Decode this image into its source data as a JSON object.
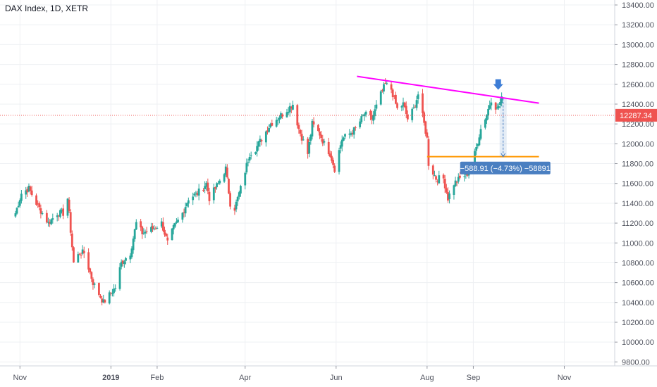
{
  "header": {
    "title": "DAX Index, 1D, XETR"
  },
  "chart_data": {
    "type": "candlestick",
    "title": "DAX Index, 1D, XETR",
    "symbol": "DAX Index",
    "interval": "1D",
    "exchange": "XETR",
    "x_ticks": [
      {
        "label": "Nov",
        "date": "2018-11-01",
        "bold": false
      },
      {
        "label": "2019",
        "date": "2019-01-01",
        "bold": true
      },
      {
        "label": "Feb",
        "date": "2019-02-01",
        "bold": false
      },
      {
        "label": "Apr",
        "date": "2019-04-01",
        "bold": false
      },
      {
        "label": "Jun",
        "date": "2019-06-01",
        "bold": false
      },
      {
        "label": "Aug",
        "date": "2019-08-01",
        "bold": false
      },
      {
        "label": "Sep",
        "date": "2019-09-01",
        "bold": false
      },
      {
        "label": "Nov",
        "date": "2019-11-01",
        "bold": false
      }
    ],
    "y_ticks": [
      "13400.00",
      "13200.00",
      "13000.00",
      "12800.00",
      "12600.00",
      "12400.00",
      "12200.00",
      "12000.00",
      "11800.00",
      "11600.00",
      "11400.00",
      "11200.00",
      "11000.00",
      "10800.00",
      "10600.00",
      "10400.00",
      "10200.00",
      "10000.00",
      "9800.00"
    ],
    "ylim": [
      9760,
      13450
    ],
    "grid": true,
    "colors": {
      "up": "#26a69a",
      "down": "#ef5350",
      "grid": "#eef0f3",
      "resistance": "#ff00ff",
      "support": "#ff9800",
      "measure": "#4a7fc1",
      "price": "#ef5350"
    },
    "last_price": {
      "value": 12287.34,
      "label": "12287.34"
    },
    "resistance_line": {
      "from": {
        "date": "2019-06-15",
        "price": 12680
      },
      "to": {
        "date": "2019-10-15",
        "price": 12410
      }
    },
    "support_line": {
      "from": {
        "date": "2019-08-01",
        "price": 11870
      },
      "to": {
        "date": "2019-10-15",
        "price": 11870
      }
    },
    "measure": {
      "date": "2019-09-21",
      "from": 12458,
      "to": 11869,
      "label": "−588.91 (−4.73%) −58891"
    },
    "path": [
      [
        "2018-10-29",
        11300
      ],
      [
        "2018-11-02",
        11500
      ],
      [
        "2018-11-07",
        11550
      ],
      [
        "2018-11-12",
        11400
      ],
      [
        "2018-11-16",
        11300
      ],
      [
        "2018-11-20",
        11200
      ],
      [
        "2018-11-26",
        11300
      ],
      [
        "2018-11-30",
        11300
      ],
      [
        "2018-12-03",
        11450
      ],
      [
        "2018-12-07",
        10800
      ],
      [
        "2018-12-11",
        10900
      ],
      [
        "2018-12-14",
        10900
      ],
      [
        "2018-12-20",
        10600
      ],
      [
        "2018-12-27",
        10400
      ],
      [
        "2019-01-04",
        10550
      ],
      [
        "2019-01-08",
        10800
      ],
      [
        "2019-01-14",
        10900
      ],
      [
        "2019-01-18",
        11200
      ],
      [
        "2019-01-22",
        11100
      ],
      [
        "2019-01-30",
        11150
      ],
      [
        "2019-02-04",
        11200
      ],
      [
        "2019-02-08",
        11000
      ],
      [
        "2019-02-12",
        11150
      ],
      [
        "2019-02-18",
        11300
      ],
      [
        "2019-02-22",
        11450
      ],
      [
        "2019-02-28",
        11500
      ],
      [
        "2019-03-06",
        11600
      ],
      [
        "2019-03-08",
        11450
      ],
      [
        "2019-03-14",
        11600
      ],
      [
        "2019-03-19",
        11750
      ],
      [
        "2019-03-22",
        11400
      ],
      [
        "2019-03-25",
        11350
      ],
      [
        "2019-03-29",
        11550
      ],
      [
        "2019-04-04",
        11900
      ],
      [
        "2019-04-08",
        11950
      ],
      [
        "2019-04-12",
        12050
      ],
      [
        "2019-04-18",
        12200
      ],
      [
        "2019-04-26",
        12300
      ],
      [
        "2019-05-03",
        12400
      ],
      [
        "2019-05-07",
        12150
      ],
      [
        "2019-05-13",
        11900
      ],
      [
        "2019-05-16",
        12200
      ],
      [
        "2019-05-21",
        12100
      ],
      [
        "2019-05-24",
        12000
      ],
      [
        "2019-05-28",
        11900
      ],
      [
        "2019-05-31",
        11750
      ],
      [
        "2019-06-05",
        12050
      ],
      [
        "2019-06-10",
        12100
      ],
      [
        "2019-06-14",
        12150
      ],
      [
        "2019-06-20",
        12300
      ],
      [
        "2019-06-25",
        12250
      ],
      [
        "2019-07-01",
        12500
      ],
      [
        "2019-07-04",
        12600
      ],
      [
        "2019-07-08",
        12550
      ],
      [
        "2019-07-12",
        12350
      ],
      [
        "2019-07-16",
        12400
      ],
      [
        "2019-07-19",
        12250
      ],
      [
        "2019-07-23",
        12350
      ],
      [
        "2019-07-26",
        12500
      ],
      [
        "2019-07-30",
        12200
      ],
      [
        "2019-08-01",
        12050
      ],
      [
        "2019-08-02",
        11800
      ],
      [
        "2019-08-07",
        11650
      ],
      [
        "2019-08-12",
        11650
      ],
      [
        "2019-08-15",
        11450
      ],
      [
        "2019-08-19",
        11600
      ],
      [
        "2019-08-23",
        11650
      ],
      [
        "2019-08-28",
        11700
      ],
      [
        "2019-09-02",
        11900
      ],
      [
        "2019-09-06",
        12150
      ],
      [
        "2019-09-10",
        12300
      ],
      [
        "2019-09-13",
        12450
      ],
      [
        "2019-09-17",
        12350
      ],
      [
        "2019-09-20",
        12450
      ],
      [
        "2019-09-23",
        12300
      ]
    ]
  }
}
